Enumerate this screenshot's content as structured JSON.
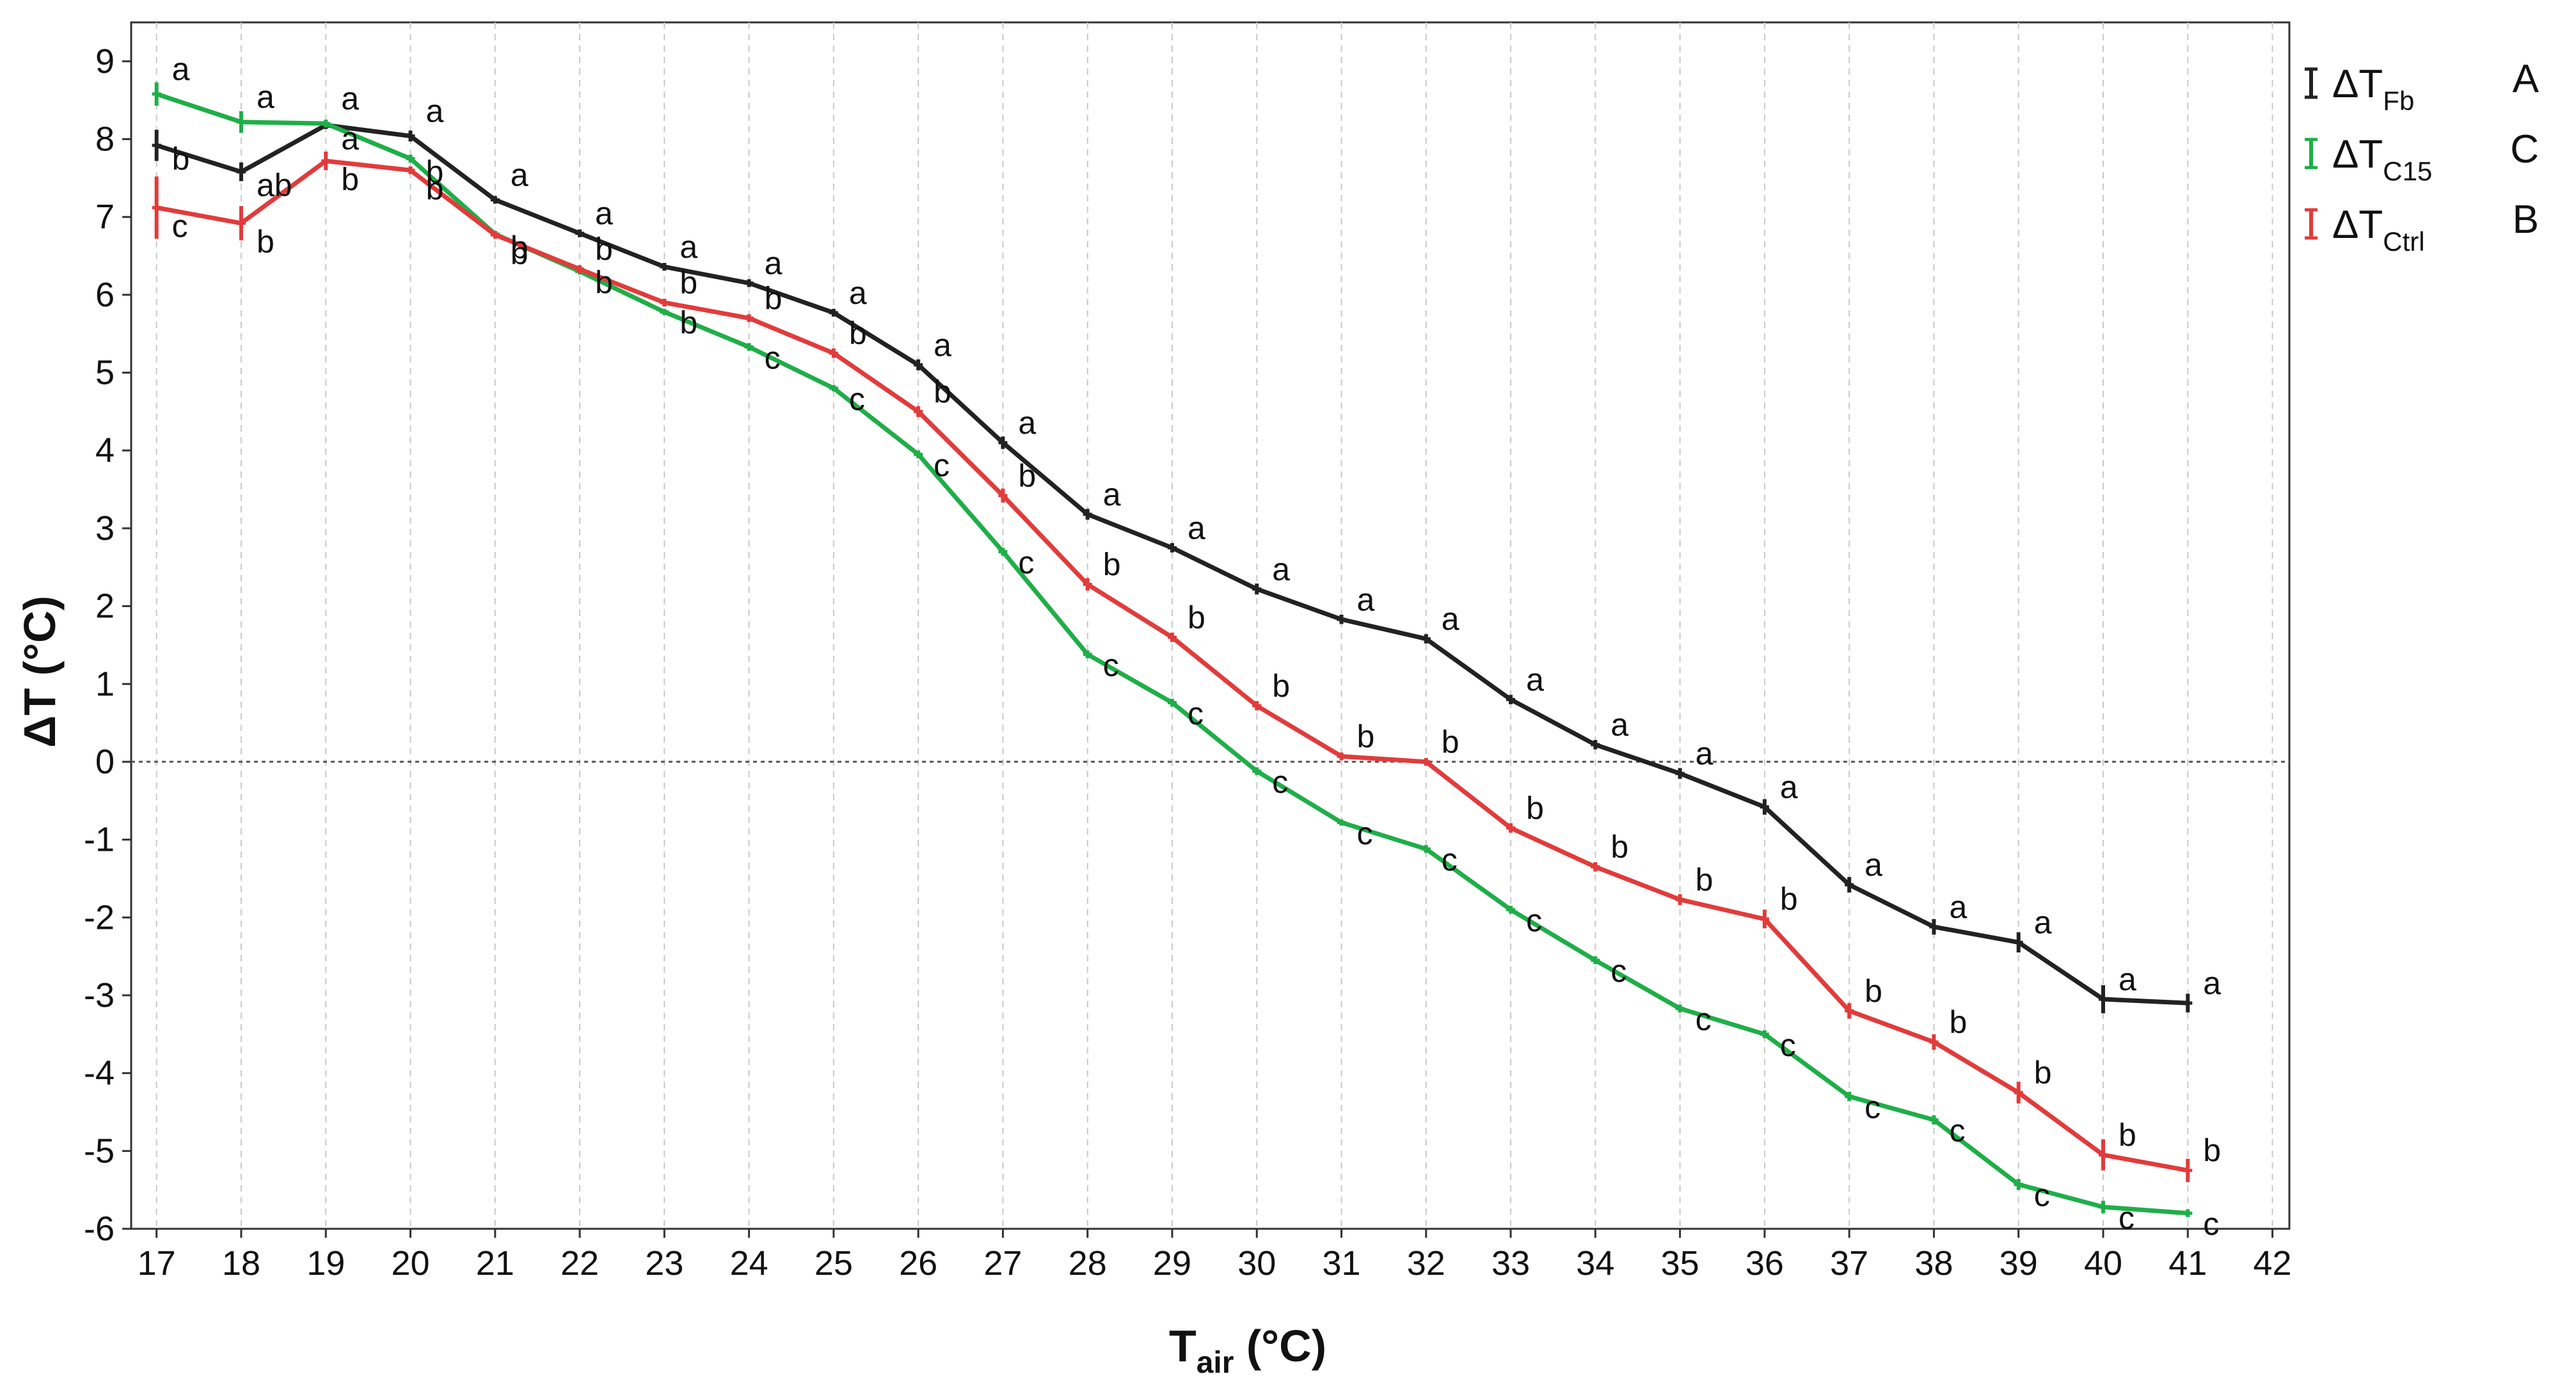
{
  "chart_data": {
    "type": "line",
    "title": "",
    "xlabel": {
      "main": "T",
      "sub": "air",
      "suffix": " (°C)"
    },
    "ylabel": "ΔT (°C)",
    "xlim": [
      16.7,
      42.2
    ],
    "ylim": [
      -6,
      9.5
    ],
    "xticks": [
      17,
      18,
      19,
      20,
      21,
      22,
      23,
      24,
      25,
      26,
      27,
      28,
      29,
      30,
      31,
      32,
      33,
      34,
      35,
      36,
      37,
      38,
      39,
      40,
      41,
      42
    ],
    "yticks": [
      -6,
      -5,
      -4,
      -3,
      -2,
      -1,
      0,
      1,
      2,
      3,
      4,
      5,
      6,
      7,
      8,
      9
    ],
    "vertical_grid": "dashed",
    "reference_line_y": 0,
    "legend_position": "right-top",
    "x": [
      17,
      18,
      19,
      20,
      21,
      22,
      23,
      24,
      25,
      26,
      27,
      28,
      29,
      30,
      31,
      32,
      33,
      34,
      35,
      36,
      37,
      38,
      39,
      40,
      41
    ],
    "series": [
      {
        "name": "ΔT",
        "name_sub": "Fb",
        "group": "A",
        "color": "#222222",
        "values": [
          7.92,
          7.58,
          8.18,
          8.04,
          7.22,
          6.79,
          6.36,
          6.15,
          5.77,
          5.1,
          4.1,
          3.18,
          2.75,
          2.22,
          1.83,
          1.58,
          0.8,
          0.22,
          -0.15,
          -0.58,
          -1.58,
          -2.12,
          -2.32,
          -3.05,
          -3.1
        ],
        "error": [
          0.2,
          0.12,
          0.05,
          0.07,
          0.05,
          0.05,
          0.05,
          0.05,
          0.05,
          0.07,
          0.08,
          0.07,
          0.06,
          0.07,
          0.06,
          0.06,
          0.06,
          0.06,
          0.07,
          0.1,
          0.1,
          0.1,
          0.13,
          0.18,
          0.12
        ],
        "letters": [
          "b",
          "ab",
          "a",
          "a",
          "a",
          "a",
          "a",
          "a",
          "a",
          "a",
          "a",
          "a",
          "a",
          "a",
          "a",
          "a",
          "a",
          "a",
          "a",
          "a",
          "a",
          "a",
          "a",
          "a",
          "a"
        ]
      },
      {
        "name": "ΔT",
        "name_sub": "C15",
        "group": "C",
        "color": "#1fae48",
        "values": [
          8.58,
          8.22,
          8.2,
          7.75,
          6.78,
          6.3,
          5.78,
          5.33,
          4.8,
          3.95,
          2.7,
          1.38,
          0.76,
          -0.12,
          -0.78,
          -1.12,
          -1.9,
          -2.55,
          -3.17,
          -3.5,
          -4.3,
          -4.6,
          -5.43,
          -5.72,
          -5.8
        ],
        "error": [
          0.15,
          0.14,
          0.05,
          0.05,
          0.04,
          0.04,
          0.04,
          0.05,
          0.04,
          0.05,
          0.05,
          0.05,
          0.05,
          0.05,
          0.04,
          0.05,
          0.05,
          0.05,
          0.05,
          0.05,
          0.06,
          0.06,
          0.07,
          0.08,
          0.05
        ],
        "letters": [
          "a",
          "a",
          "a",
          "b",
          "b",
          "b",
          "b",
          "c",
          "c",
          "c",
          "c",
          "c",
          "c",
          "c",
          "c",
          "c",
          "c",
          "c",
          "c",
          "c",
          "c",
          "c",
          "c",
          "c",
          "c"
        ]
      },
      {
        "name": "ΔT",
        "name_sub": "Ctrl",
        "group": "B",
        "color": "#e23b3b",
        "values": [
          7.12,
          6.92,
          7.72,
          7.6,
          6.77,
          6.33,
          5.9,
          5.7,
          5.25,
          4.5,
          3.42,
          2.28,
          1.6,
          0.72,
          0.07,
          0.0,
          -0.85,
          -1.35,
          -1.77,
          -2.02,
          -3.2,
          -3.6,
          -4.25,
          -5.05,
          -5.25
        ],
        "error": [
          0.4,
          0.22,
          0.12,
          0.05,
          0.05,
          0.05,
          0.05,
          0.05,
          0.06,
          0.07,
          0.09,
          0.08,
          0.06,
          0.06,
          0.05,
          0.05,
          0.06,
          0.06,
          0.07,
          0.12,
          0.1,
          0.1,
          0.14,
          0.2,
          0.15
        ],
        "letters": [
          "c",
          "b",
          "b",
          "b",
          "b",
          "b",
          "b",
          "b",
          "b",
          "b",
          "b",
          "b",
          "b",
          "b",
          "b",
          "b",
          "b",
          "b",
          "b",
          "b",
          "b",
          "b",
          "b",
          "b",
          "b"
        ]
      }
    ]
  }
}
